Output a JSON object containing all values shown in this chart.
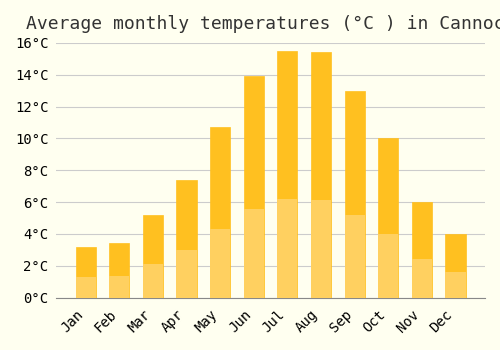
{
  "title": "Average monthly temperatures (°C ) in Cannock",
  "months": [
    "Jan",
    "Feb",
    "Mar",
    "Apr",
    "May",
    "Jun",
    "Jul",
    "Aug",
    "Sep",
    "Oct",
    "Nov",
    "Dec"
  ],
  "values": [
    3.2,
    3.4,
    5.2,
    7.4,
    10.7,
    13.9,
    15.5,
    15.4,
    13.0,
    10.0,
    6.0,
    4.0
  ],
  "bar_color_top": "#FFC020",
  "bar_color_bottom": "#FFD060",
  "background_color": "#FFFFF0",
  "grid_color": "#CCCCCC",
  "ylim": [
    0,
    16
  ],
  "ytick_step": 2,
  "title_fontsize": 13,
  "tick_fontsize": 10,
  "bar_width": 0.6
}
